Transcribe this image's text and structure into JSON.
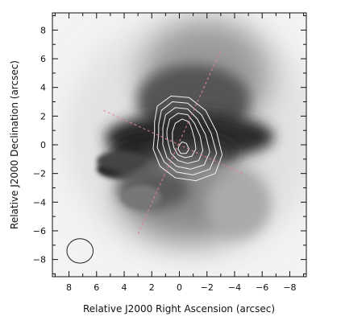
{
  "chart_data": {
    "type": "image",
    "xlabel": "Relative J2000 Right Ascension (arcsec)",
    "ylabel": "Relative J2000 Declination (arcsec)",
    "xlim": [
      9.2,
      -9.2
    ],
    "ylim": [
      -9.2,
      9.2
    ],
    "x_ticks": [
      8,
      6,
      4,
      2,
      0,
      -2,
      -4,
      -6,
      -8
    ],
    "y_ticks": [
      -8,
      -6,
      -4,
      -2,
      0,
      2,
      4,
      6,
      8
    ],
    "x_tick_labels": [
      "8",
      "6",
      "4",
      "2",
      "0",
      "−2",
      "−4",
      "−6",
      "−8"
    ],
    "y_tick_labels": [
      "−8",
      "−6",
      "−4",
      "−2",
      "0",
      "2",
      "4",
      "6",
      "8"
    ],
    "colormap": "grayscale-inverted",
    "contour_color": "#f2f2f2",
    "dashed_line_color": "#e08090",
    "beam_color": "#222222",
    "beam": {
      "center": [
        7.2,
        -7.4
      ],
      "major_axis": 1.9,
      "minor_axis": 1.7
    },
    "dashed_lines": [
      {
        "from": [
          3.0,
          -6.2
        ],
        "to": [
          -3.0,
          6.6
        ]
      },
      {
        "from": [
          5.5,
          2.4
        ],
        "to": [
          -4.8,
          -2.1
        ]
      }
    ],
    "contour_levels": 6,
    "contours": [
      [
        [
          1.8,
          1.6
        ],
        [
          1.6,
          2.7
        ],
        [
          0.6,
          3.4
        ],
        [
          -0.7,
          3.3
        ],
        [
          -1.9,
          2.4
        ],
        [
          -2.7,
          0.9
        ],
        [
          -3.1,
          -0.7
        ],
        [
          -2.6,
          -2.0
        ],
        [
          -1.2,
          -2.5
        ],
        [
          0.3,
          -2.3
        ],
        [
          1.4,
          -1.5
        ],
        [
          1.9,
          -0.3
        ],
        [
          1.8,
          0.8
        ]
      ],
      [
        [
          1.5,
          1.4
        ],
        [
          1.3,
          2.4
        ],
        [
          0.5,
          3.0
        ],
        [
          -0.6,
          2.9
        ],
        [
          -1.6,
          2.1
        ],
        [
          -2.3,
          0.8
        ],
        [
          -2.7,
          -0.6
        ],
        [
          -2.2,
          -1.7
        ],
        [
          -1.0,
          -2.1
        ],
        [
          0.2,
          -1.9
        ],
        [
          1.1,
          -1.2
        ],
        [
          1.6,
          -0.2
        ],
        [
          1.5,
          0.7
        ]
      ],
      [
        [
          1.2,
          1.2
        ],
        [
          1.0,
          2.1
        ],
        [
          0.3,
          2.6
        ],
        [
          -0.6,
          2.5
        ],
        [
          -1.3,
          1.8
        ],
        [
          -1.9,
          0.7
        ],
        [
          -2.2,
          -0.5
        ],
        [
          -1.8,
          -1.4
        ],
        [
          -0.8,
          -1.7
        ],
        [
          0.2,
          -1.5
        ],
        [
          0.9,
          -0.9
        ],
        [
          1.2,
          0.0
        ],
        [
          1.2,
          0.6
        ]
      ],
      [
        [
          0.9,
          1.0
        ],
        [
          0.7,
          1.8
        ],
        [
          0.1,
          2.2
        ],
        [
          -0.6,
          2.1
        ],
        [
          -1.1,
          1.5
        ],
        [
          -1.5,
          0.6
        ],
        [
          -1.7,
          -0.4
        ],
        [
          -1.4,
          -1.1
        ],
        [
          -0.6,
          -1.3
        ],
        [
          0.1,
          -1.1
        ],
        [
          0.6,
          -0.6
        ],
        [
          0.8,
          0.1
        ],
        [
          0.9,
          0.6
        ]
      ],
      [
        [
          0.5,
          0.9
        ],
        [
          0.3,
          1.5
        ],
        [
          -0.2,
          1.8
        ],
        [
          -0.7,
          1.6
        ],
        [
          -0.9,
          1.1
        ],
        [
          -1.1,
          0.4
        ],
        [
          -1.2,
          -0.3
        ],
        [
          -0.9,
          -0.8
        ],
        [
          -0.4,
          -0.9
        ],
        [
          0.1,
          -0.7
        ],
        [
          0.4,
          -0.2
        ],
        [
          0.5,
          0.3
        ]
      ],
      [
        [
          -0.2,
          0.2
        ],
        [
          -0.5,
          0.1
        ],
        [
          -0.7,
          -0.3
        ],
        [
          -0.5,
          -0.6
        ],
        [
          -0.1,
          -0.6
        ],
        [
          0.1,
          -0.3
        ],
        [
          0.0,
          0.0
        ]
      ]
    ]
  }
}
